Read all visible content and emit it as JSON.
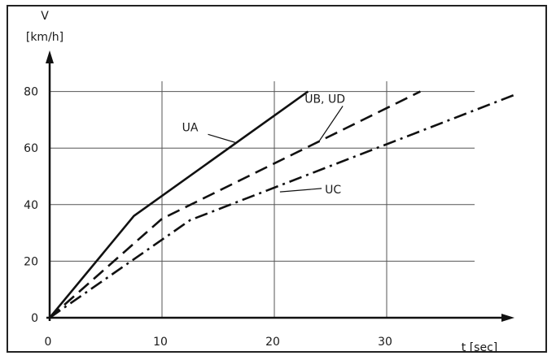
{
  "chart_data": {
    "type": "line",
    "y_axis_label": "V",
    "y_axis_unit": "[km/h]",
    "x_axis_label": "t [sec]",
    "xlim": [
      0,
      42
    ],
    "ylim": [
      0,
      87
    ],
    "x_ticks": [
      0,
      10,
      20,
      30
    ],
    "y_ticks": [
      0,
      20,
      40,
      60,
      80
    ],
    "x_tick_labels": [
      "0",
      "10",
      "20",
      "30"
    ],
    "y_tick_labels": [
      "0",
      "20",
      "40",
      "60",
      "80"
    ],
    "grid": true,
    "series": [
      {
        "name": "UA",
        "style": "solid",
        "points": [
          [
            0,
            0
          ],
          [
            7.5,
            36
          ],
          [
            23,
            80
          ]
        ],
        "label_pos": [
          12.5,
          66
        ],
        "leader_to": [
          16.5,
          62
        ]
      },
      {
        "name": "UB, UD",
        "style": "dashed",
        "points": [
          [
            0,
            0
          ],
          [
            10,
            35
          ],
          [
            33,
            80
          ]
        ],
        "label_pos": [
          24.5,
          76
        ],
        "leader_to": [
          24,
          62.5
        ]
      },
      {
        "name": "UC",
        "style": "dashdot",
        "points": [
          [
            0,
            0
          ],
          [
            12.5,
            34.5
          ],
          [
            41.5,
            79
          ]
        ],
        "label_pos": [
          24.5,
          44
        ],
        "leader_to": [
          20.5,
          44.5
        ]
      }
    ]
  }
}
